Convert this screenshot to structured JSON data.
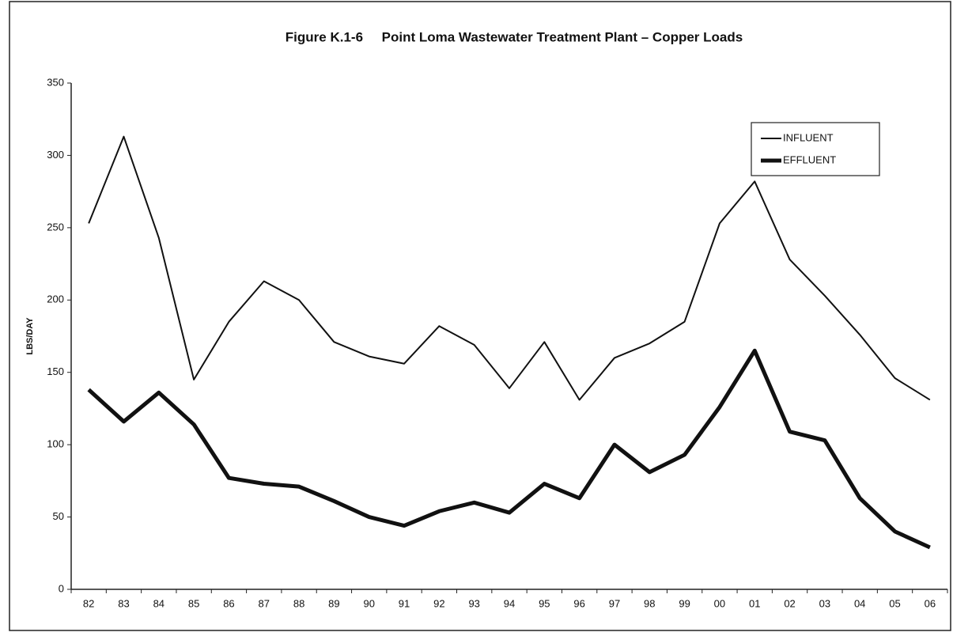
{
  "chart_data": {
    "type": "line",
    "title": "Figure K.1-6     Point Loma Wastewater Treatment Plant – Copper Loads",
    "y_label": "LBS/DAY",
    "categories": [
      "82",
      "83",
      "84",
      "85",
      "86",
      "87",
      "88",
      "89",
      "90",
      "91",
      "92",
      "93",
      "94",
      "95",
      "96",
      "97",
      "98",
      "99",
      "00",
      "01",
      "02",
      "03",
      "04",
      "05",
      "06"
    ],
    "series": [
      {
        "name": "INFLUENT",
        "color": "#111111",
        "line_width": 2,
        "values": [
          253,
          313,
          243,
          145,
          185,
          213,
          200,
          171,
          161,
          156,
          182,
          169,
          139,
          171,
          131,
          160,
          170,
          185,
          253,
          282,
          228,
          203,
          176,
          146,
          131
        ]
      },
      {
        "name": "EFFLUENT",
        "color": "#111111",
        "line_width": 5,
        "values": [
          138,
          116,
          136,
          114,
          77,
          73,
          71,
          61,
          50,
          44,
          54,
          60,
          53,
          73,
          63,
          100,
          81,
          93,
          126,
          165,
          109,
          103,
          63,
          40,
          29
        ]
      }
    ],
    "ylim": [
      0,
      350
    ],
    "yticks": [
      0,
      50,
      100,
      150,
      200,
      250,
      300,
      350
    ],
    "grid": false,
    "legend": "upper right"
  }
}
